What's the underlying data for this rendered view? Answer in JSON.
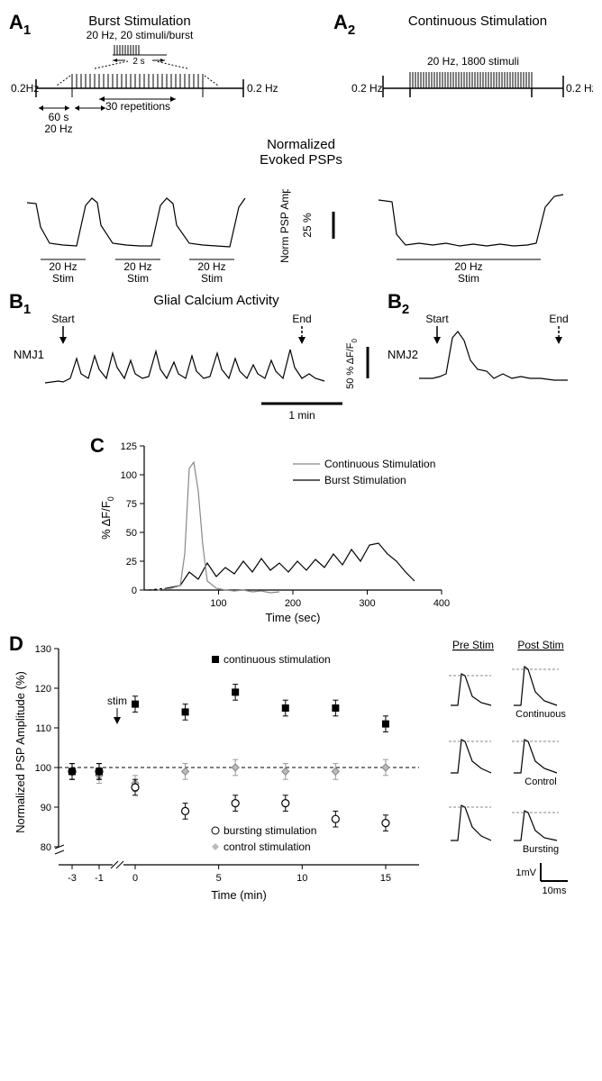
{
  "panelA1": {
    "label_main": "A",
    "label_sub": "1",
    "title": "Burst Stimulation",
    "subtitle": "20 Hz, 20 stimuli/burst",
    "burst_gap_label": "2 s",
    "reps_label": "30 repetitions",
    "left_hz": "0.2Hz",
    "right_hz": "0.2 Hz",
    "interval_top": "60 s",
    "interval_bottom": "20 Hz"
  },
  "panelA2": {
    "label_main": "A",
    "label_sub": "2",
    "title": "Continuous Stimulation",
    "subtitle": "20 Hz, 1800 stimuli",
    "left_hz": "0.2 Hz",
    "right_hz": "0.2 Hz"
  },
  "normPSP": {
    "title": "Normalized",
    "title2": "Evoked PSPs",
    "ylabel": "Norm PSP Amp",
    "scalebar": "25 %",
    "stim_hz": "20 Hz",
    "stim_label": "Stim"
  },
  "panelB1": {
    "label_main": "B",
    "label_sub": "1",
    "title": "Glial Calcium Activity",
    "start": "Start",
    "end": "End",
    "nmj": "NMJ1",
    "yscale": "50 % ΔF/F",
    "ysub": "0",
    "xscale": "1 min"
  },
  "panelB2": {
    "label_main": "B",
    "label_sub": "2",
    "start": "Start",
    "end": "End",
    "nmj": "NMJ2"
  },
  "panelC": {
    "label": "C",
    "ylabel": "% ΔF/F",
    "ysub": "0",
    "xlabel": "Time (sec)",
    "legend1": "Continuous Stimulation",
    "legend2": "Burst Stimulation",
    "yticks": [
      "0",
      "25",
      "50",
      "75",
      "100",
      "125"
    ],
    "xticks": [
      "100",
      "200",
      "300",
      "400"
    ],
    "ylim": [
      0,
      125
    ],
    "xlim": [
      0,
      400
    ],
    "colors": {
      "continuous": "#888888",
      "burst": "#000000",
      "axis": "#000000"
    }
  },
  "panelD": {
    "label": "D",
    "ylabel": "Normalized PSP Amplitude (%)",
    "xlabel": "Time (min)",
    "legend_cont": "continuous stimulation",
    "legend_burst": "bursting stimulation",
    "legend_ctrl": "control stimulation",
    "stim_label": "stim",
    "yticks": [
      "80",
      "90",
      "100",
      "110",
      "120",
      "130"
    ],
    "xticks_pre": [
      "-3",
      "-1"
    ],
    "xticks_post": [
      "0",
      "5",
      "10",
      "15"
    ],
    "baseline_y": 100,
    "series": {
      "continuous": {
        "marker": "filled-square",
        "color": "#000000",
        "points": [
          [
            -3,
            99
          ],
          [
            -1,
            99
          ],
          [
            0,
            116
          ],
          [
            3,
            114
          ],
          [
            6,
            119
          ],
          [
            9,
            115
          ],
          [
            12,
            115
          ],
          [
            15,
            111
          ]
        ]
      },
      "control": {
        "marker": "diamond",
        "color": "#999999",
        "points": [
          [
            -3,
            99
          ],
          [
            -1,
            98
          ],
          [
            0,
            96
          ],
          [
            3,
            99
          ],
          [
            6,
            100
          ],
          [
            9,
            99
          ],
          [
            12,
            99
          ],
          [
            15,
            100
          ]
        ]
      },
      "bursting": {
        "marker": "open-circle",
        "color": "#000000",
        "points": [
          [
            -3,
            99
          ],
          [
            -1,
            99
          ],
          [
            0,
            95
          ],
          [
            3,
            89
          ],
          [
            6,
            91
          ],
          [
            9,
            91
          ],
          [
            12,
            87
          ],
          [
            15,
            86
          ]
        ]
      }
    },
    "errbar": 2,
    "traces": {
      "pre": "Pre Stim",
      "post": "Post Stim",
      "row1": "Continuous",
      "row2": "Control",
      "row3": "Bursting",
      "vscale": "1mV",
      "hscale": "10ms"
    }
  },
  "style": {
    "bg": "#ffffff",
    "fg": "#000000",
    "gray": "#888888",
    "font_title": 15,
    "font_label": 12,
    "font_small": 11
  }
}
